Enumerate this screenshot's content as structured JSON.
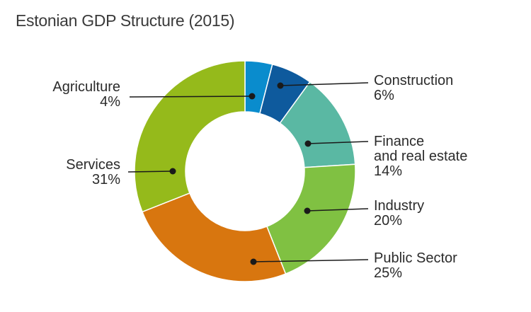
{
  "title": "Estonian GDP Structure (2015)",
  "chart_data": {
    "type": "pie",
    "subtype": "donut",
    "title": "Estonian GDP Structure (2015)",
    "unit": "%",
    "start_angle": "12-o-clock",
    "direction": "clockwise",
    "inner_radius_ratio": 0.54,
    "legend_position": "none",
    "label_style": "leader-line-callouts",
    "background_color": "#ffffff",
    "leader_color": "#1a1a1a",
    "text_color": "#2b2b2b",
    "categories": [
      "Agriculture",
      "Construction",
      "Finance and real estate",
      "Industry",
      "Public Sector",
      "Services"
    ],
    "values": [
      4,
      6,
      14,
      20,
      25,
      31
    ],
    "segments": [
      {
        "name": "Agriculture",
        "display_name": "Agriculture",
        "value": 4,
        "value_label": "4%",
        "color": "#0a8ccd",
        "label_side": "left"
      },
      {
        "name": "Construction",
        "display_name": "Construction",
        "value": 6,
        "value_label": "6%",
        "color": "#0e5a9d",
        "label_side": "right"
      },
      {
        "name": "Finance and real estate",
        "display_name": "Finance\nand real estate",
        "value": 14,
        "value_label": "14%",
        "color": "#5ab8a3",
        "label_side": "right"
      },
      {
        "name": "Industry",
        "display_name": "Industry",
        "value": 20,
        "value_label": "20%",
        "color": "#80c142",
        "label_side": "right"
      },
      {
        "name": "Public Sector",
        "display_name": "Public Sector",
        "value": 25,
        "value_label": "25%",
        "color": "#d8760f",
        "label_side": "right"
      },
      {
        "name": "Services",
        "display_name": "Services",
        "value": 31,
        "value_label": "31%",
        "color": "#95ba1b",
        "label_side": "left"
      }
    ]
  }
}
